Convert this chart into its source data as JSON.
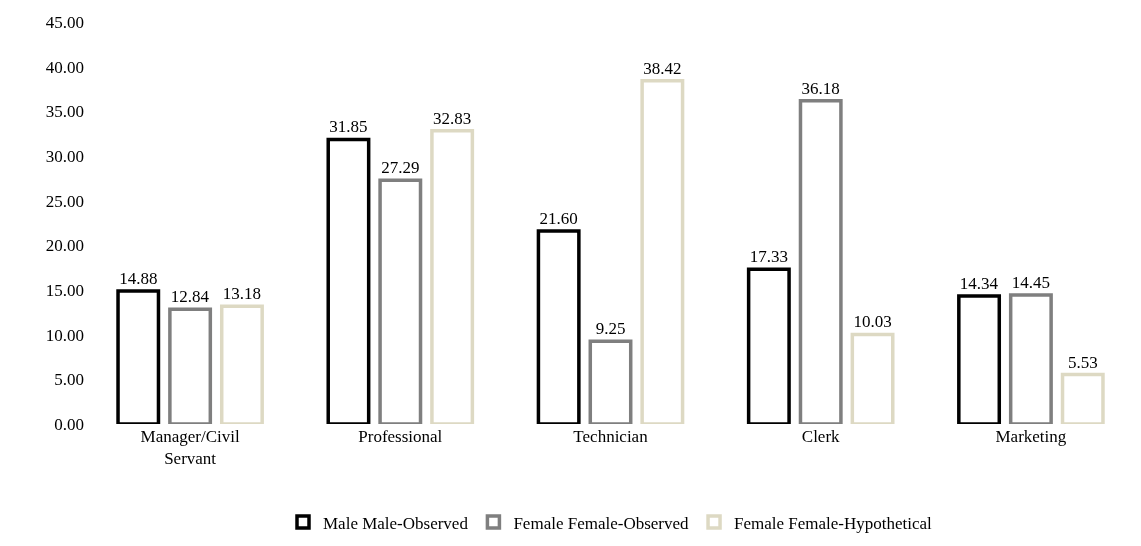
{
  "chart_data": {
    "type": "bar",
    "categories": [
      "Manager/Civil Servant",
      "Professional",
      "Technician",
      "Clerk",
      "Marketing"
    ],
    "series": [
      {
        "name": "Male Male-Observed",
        "color": "#000000",
        "values": [
          14.88,
          31.85,
          21.6,
          17.33,
          14.34
        ],
        "value_labels": [
          "14.88",
          "31.85",
          "21.60",
          "17.33",
          "14.34"
        ]
      },
      {
        "name": "Female Female-Observed",
        "color": "#7f7f7f",
        "values": [
          12.84,
          27.29,
          9.25,
          36.18,
          14.45
        ],
        "value_labels": [
          "12.84",
          "27.29",
          "9.25",
          "36.18",
          "14.45"
        ]
      },
      {
        "name": "Female Female-Hypothetical",
        "color": "#ddd9c3",
        "values": [
          13.18,
          32.83,
          38.42,
          10.03,
          5.53
        ],
        "value_labels": [
          "13.18",
          "32.83",
          "38.42",
          "10.03",
          "5.53"
        ]
      }
    ],
    "ylim": [
      0,
      45
    ],
    "yticks": [
      {
        "value": 0,
        "label": "0.00"
      },
      {
        "value": 5,
        "label": "5.00"
      },
      {
        "value": 10,
        "label": "10.00"
      },
      {
        "value": 15,
        "label": "15.00"
      },
      {
        "value": 20,
        "label": "20.00"
      },
      {
        "value": 25,
        "label": "25.00"
      },
      {
        "value": 30,
        "label": "30.00"
      },
      {
        "value": 35,
        "label": "35.00"
      },
      {
        "value": 40,
        "label": "40.00"
      },
      {
        "value": 45,
        "label": "45.00"
      }
    ],
    "grid": false,
    "legend": "bottom"
  }
}
